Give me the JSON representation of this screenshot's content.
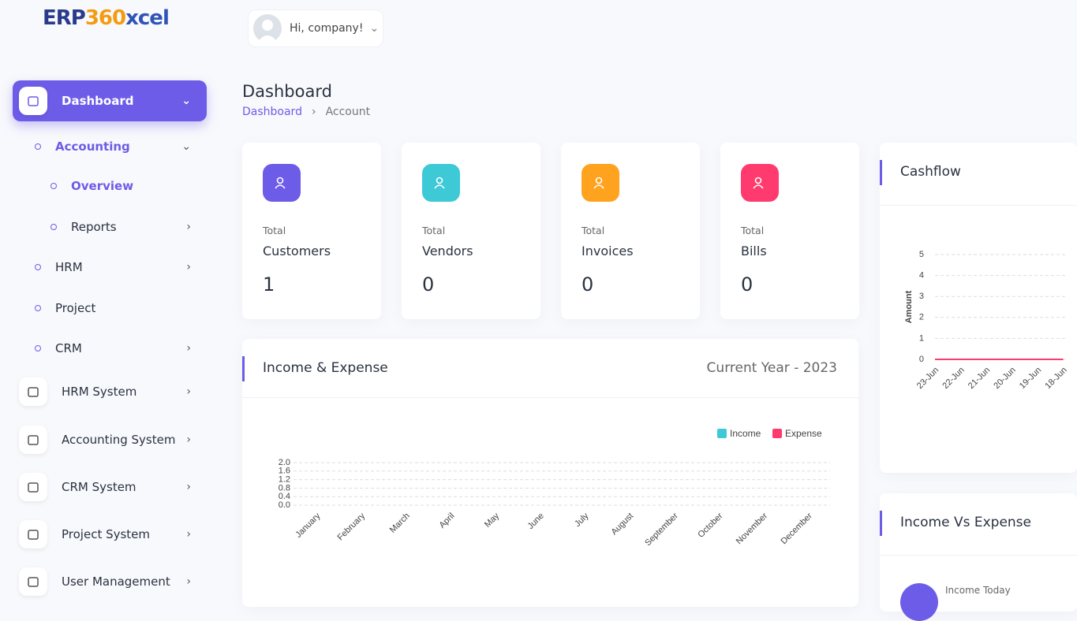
{
  "header": {
    "logo_erp": "ERP",
    "logo_360": "360",
    "logo_xcel": "xcel",
    "greeting": "Hi, company!"
  },
  "sidebar": [
    "Dashboard",
    "Accounting",
    "Overview",
    "Reports",
    "HRM",
    "Project",
    "CRM",
    "HRM System",
    "Accounting System",
    "CRM System",
    "Project System",
    "User Management"
  ],
  "page": {
    "title": "Dashboard",
    "breadcrumb": [
      "Dashboard",
      "Account"
    ]
  },
  "stats": [
    {
      "caption": "Total",
      "label": "Customers",
      "value": 1
    },
    {
      "caption": "Total",
      "label": "Vendors",
      "value": 0
    },
    {
      "caption": "Total",
      "label": "Invoices",
      "value": 0
    },
    {
      "caption": "Total",
      "label": "Bills",
      "value": 0
    }
  ],
  "income_vs_expense": {
    "title": "Income Vs Expense",
    "item": "Income Today"
  },
  "chart_data": [
    {
      "type": "bar",
      "title": "Income & Expense",
      "subtitle": "Current Year - 2023",
      "categories": [
        "January",
        "February",
        "March",
        "April",
        "May",
        "June",
        "July",
        "August",
        "September",
        "October",
        "November",
        "December"
      ],
      "series": [
        {
          "name": "Income",
          "color": "#3ec9d6",
          "values": [
            0,
            0,
            0,
            0,
            0,
            0,
            0,
            0,
            0,
            0,
            0,
            0
          ]
        },
        {
          "name": "Expense",
          "color": "#ff3a6e",
          "values": [
            0,
            0,
            0,
            0,
            0,
            0,
            0,
            0,
            0,
            0,
            0,
            0
          ]
        }
      ],
      "ylim": [
        0,
        2
      ],
      "yticks": [
        {
          "value": 0,
          "label": "0.0"
        },
        {
          "value": 0.4,
          "label": "0.4"
        },
        {
          "value": 0.8,
          "label": "0.8"
        },
        {
          "value": 1.2,
          "label": "1.2"
        },
        {
          "value": 1.6,
          "label": "1.6"
        },
        {
          "value": 2,
          "label": "2.0"
        }
      ],
      "grid": true,
      "legend": "top-right"
    },
    {
      "type": "line",
      "title": "Cashflow",
      "y_label": "Amount",
      "categories": [
        "23-Jun",
        "22-Jun",
        "21-Jun",
        "20-Jun",
        "19-Jun",
        "18-Jun"
      ],
      "values": [
        0,
        0,
        0,
        0,
        0,
        0
      ],
      "color": "#ff3a6e",
      "ylim": [
        0,
        5
      ],
      "yticks": [
        0,
        1,
        2,
        3,
        4,
        5
      ],
      "grid": true
    }
  ]
}
